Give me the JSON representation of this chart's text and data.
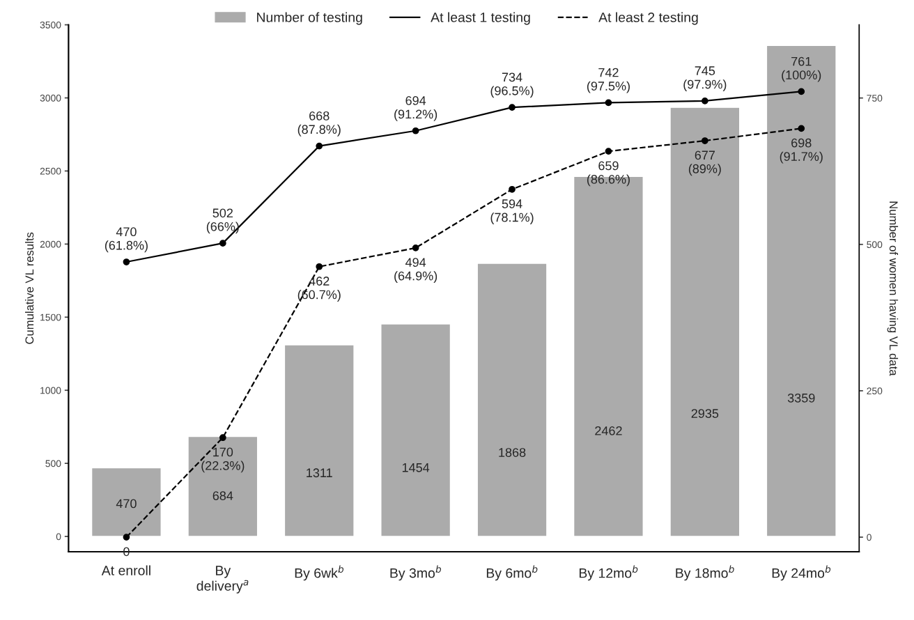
{
  "chart_data": {
    "type": "bar",
    "categories": [
      "At enroll",
      "By\ndelivery$^{a}$",
      "By 6wk$^{b}$",
      "By 3mo$^{b}$",
      "By 6mo$^{b}$",
      "By 12mo$^{b}$",
      "By 18mo$^{b}$",
      "By 24mo$^{b}$"
    ],
    "ylabel": "Cumulative VL results",
    "y2label": "Number of women having VL data",
    "ylim": [
      -105,
      3500
    ],
    "yticks": [
      0,
      500,
      1000,
      1500,
      2000,
      2500,
      3000,
      3500
    ],
    "y2lim": [
      -25,
      875
    ],
    "y2ticks": [
      0,
      250,
      500,
      750
    ],
    "legend": "top",
    "grid": false,
    "series": [
      {
        "name": "Number of testing",
        "color": "#ababab",
        "values": [
          470,
          684,
          1311,
          1454,
          1868,
          2462,
          2935,
          3359
        ],
        "value_labels": [
          "470",
          "684",
          "1311",
          "1454",
          "1868",
          "2462",
          "2935",
          "3359"
        ]
      },
      {
        "name": "At least 1 testing",
        "type": "line",
        "axis": "y2",
        "color": "#000000",
        "line_style": "solid",
        "marker": "circle",
        "values": [
          470,
          502,
          668,
          694,
          734,
          742,
          745,
          761
        ],
        "value_labels": [
          "470\n(61.8%)",
          "502\n(66%)",
          "668\n(87.8%)",
          "694\n(91.2%)",
          "734\n(96.5%)",
          "742\n(97.5%)",
          "745\n(97.9%)",
          "761\n(100%)"
        ]
      },
      {
        "name": "At least 2 testing",
        "type": "line",
        "axis": "y2",
        "color": "#000000",
        "line_style": "dashed",
        "marker": "circle",
        "values": [
          0,
          170,
          462,
          494,
          594,
          659,
          677,
          698
        ],
        "value_labels": [
          "0",
          "170\n(22.3%)",
          "462\n(60.7%)",
          "494\n(64.9%)",
          "594\n(78.1%)",
          "659\n(86.6%)",
          "677\n(89%)",
          "698\n(91.7%)"
        ]
      }
    ]
  }
}
